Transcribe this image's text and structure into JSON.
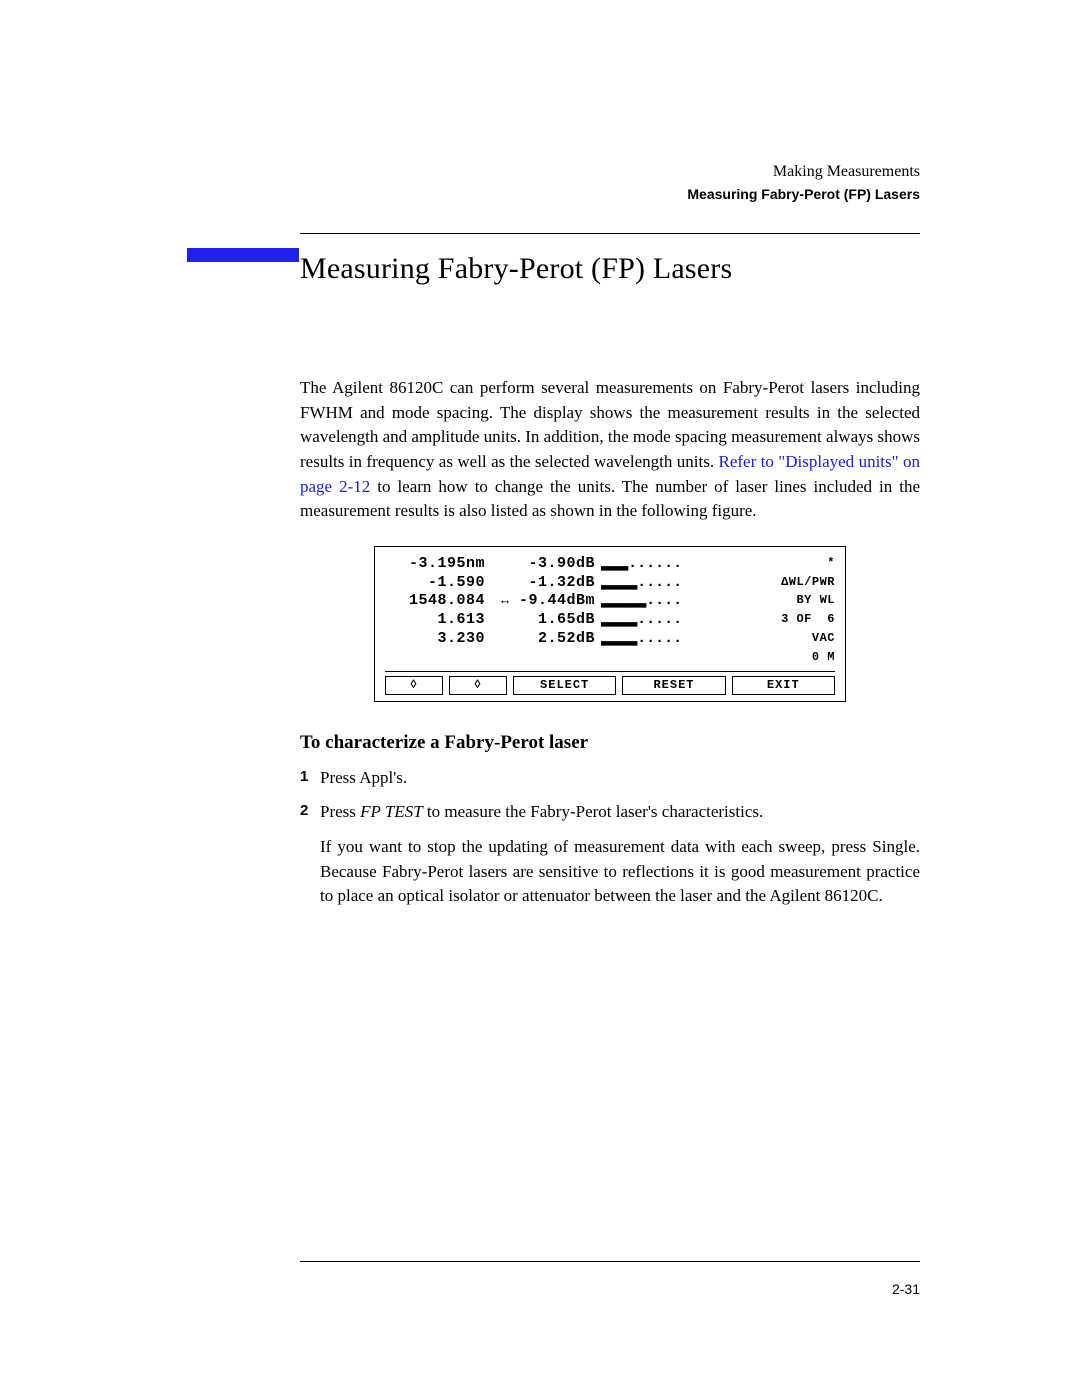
{
  "colors": {
    "accent_blue": "#2020f0",
    "link_blue": "#1818e8",
    "text": "#000000",
    "background": "#ffffff",
    "rule": "#000000"
  },
  "header": {
    "chapter": "Making Measurements",
    "section": "Measuring Fabry-Perot (FP) Lasers"
  },
  "title": "Measuring Fabry-Perot (FP) Lasers",
  "intro": {
    "part_a": "The Agilent 86120C can perform several measurements on Fabry-Perot lasers including FWHM and mode spacing. The display shows the measurement results in the selected wavelength and amplitude units. In addition, the mode spacing measurement always shows results in frequency as well as the selected wavelength units. ",
    "link_text": "Refer to \"Displayed units\" on page 2-12",
    "part_b": " to learn how to change the units. The number of laser lines included in the measurement results is also listed as shown in the following figure."
  },
  "lcd": {
    "rows": [
      {
        "wl": "-3.195nm",
        "pwr": "-3.90dB",
        "arrow": "",
        "bar": "▂▂▂......",
        "side": "*"
      },
      {
        "wl": "-1.590",
        "pwr": "-1.32dB",
        "arrow": "",
        "bar": "▂▂▂▂.....",
        "side": "ΔWL/PWR"
      },
      {
        "wl": "1548.084",
        "pwr": "-9.44dBm",
        "arrow": "↔",
        "bar": "▂▂▂▂▂....",
        "side": "BY WL"
      },
      {
        "wl": "1.613",
        "pwr": "1.65dB",
        "arrow": "",
        "bar": "▂▂▂▂.....",
        "side": "3 OF  6"
      },
      {
        "wl": "3.230",
        "pwr": "2.52dB",
        "arrow": "",
        "bar": "▂▂▂▂.....",
        "side": "VAC"
      }
    ],
    "extra_side": "0 M",
    "softkeys": {
      "k1": "◊",
      "k2": "◊",
      "k3": "SELECT",
      "k4": "RESET",
      "k5": "EXIT"
    }
  },
  "procedure_heading": "To characterize a Fabry-Perot laser",
  "steps": {
    "s1_num": "1",
    "s1_text": "Press Appl's.",
    "s2_num": "2",
    "s2_prefix": "Press ",
    "s2_italic": "FP TEST",
    "s2_suffix": " to measure the Fabry-Perot laser's characteristics.",
    "s2_para": "If you want to stop the updating of measurement data with each sweep, press Single. Because Fabry-Perot lasers are sensitive to reflections it is good measurement practice to place an optical isolator or attenuator between the laser and the Agilent 86120C."
  },
  "page_number": "2-31"
}
